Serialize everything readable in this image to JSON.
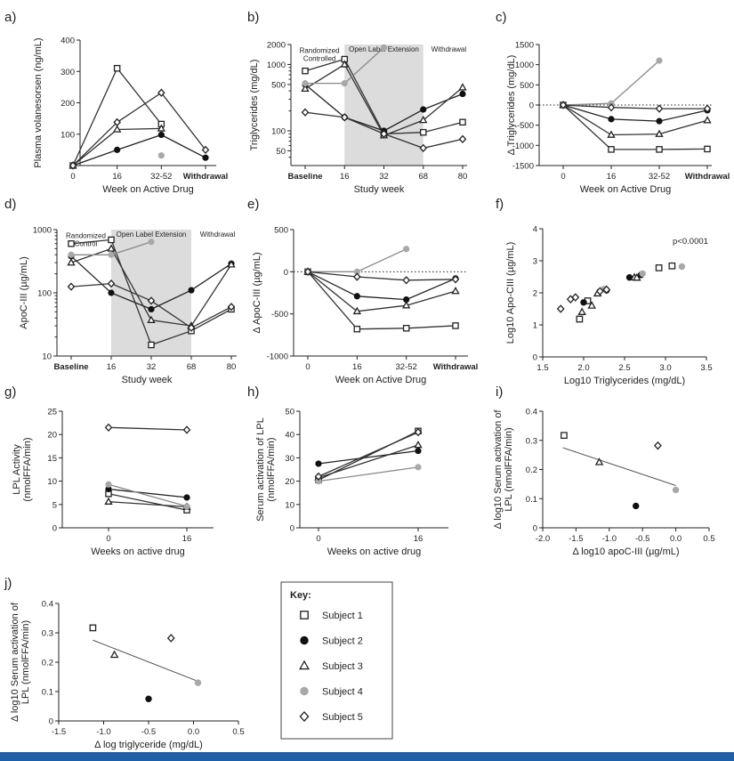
{
  "theme": {
    "bottom_bar": "#1f5fa8",
    "shade": "#dcdcdc"
  },
  "key": {
    "title": "Key:",
    "items": [
      {
        "label": "Subject 1",
        "marker": "square-open"
      },
      {
        "label": "Subject 2",
        "marker": "circle-filled"
      },
      {
        "label": "Subject 3",
        "marker": "triangle-open"
      },
      {
        "label": "Subject 4",
        "marker": "circle-gray"
      },
      {
        "label": "Subject 5",
        "marker": "diamond-open"
      }
    ]
  },
  "chart_data": [
    {
      "id": "a",
      "label": "a)",
      "type": "line",
      "xlabel": "Week on Active Drug",
      "ylabel": "Plasma volanesorsen (ng/mL)",
      "categories": [
        "0",
        "16",
        "32-52",
        "Withdrawal"
      ],
      "ylim": [
        0,
        400
      ],
      "yticks": [
        0,
        100,
        200,
        300,
        400
      ],
      "series": [
        {
          "name": "Subject 1",
          "values": [
            0,
            310,
            132,
            null
          ]
        },
        {
          "name": "Subject 2",
          "values": [
            0,
            50,
            98,
            25
          ]
        },
        {
          "name": "Subject 3",
          "values": [
            0,
            115,
            118,
            null
          ]
        },
        {
          "name": "Subject 4",
          "values": [
            0,
            null,
            32,
            null
          ]
        },
        {
          "name": "Subject 5",
          "values": [
            0,
            138,
            232,
            50
          ]
        }
      ]
    },
    {
      "id": "b",
      "label": "b)",
      "type": "line",
      "scale": "log",
      "xlabel": "Study week",
      "ylabel": "Triglycerides (mg/dL)",
      "categories": [
        "Baseline",
        "16",
        "32",
        "68",
        "80"
      ],
      "ylim": [
        30,
        2000
      ],
      "yticks": [
        50,
        100,
        500,
        1000,
        2000
      ],
      "shade_range": [
        "16",
        "68"
      ],
      "annotations": {
        "left": "Randomized\nControlled",
        "middle": "Open Label Extension",
        "right": "Withdrawal"
      },
      "series": [
        {
          "name": "Subject 1",
          "values": [
            800,
            1200,
            90,
            95,
            135
          ]
        },
        {
          "name": "Subject 2",
          "values": [
            500,
            160,
            100,
            210,
            360
          ]
        },
        {
          "name": "Subject 3",
          "values": [
            430,
            1000,
            85,
            145,
            450
          ]
        },
        {
          "name": "Subject 4",
          "values": [
            520,
            520,
            1800,
            null,
            null
          ]
        },
        {
          "name": "Subject 5",
          "values": [
            190,
            160,
            90,
            55,
            75
          ]
        }
      ]
    },
    {
      "id": "c",
      "label": "c)",
      "type": "line",
      "xlabel": "Week on Active Drug",
      "ylabel": "Δ Triglycerides (mg/dL)",
      "categories": [
        "0",
        "16",
        "32-52",
        "Withdrawal"
      ],
      "ylim": [
        -1500,
        1500
      ],
      "yticks": [
        -1500,
        -1000,
        -500,
        0,
        500,
        1000,
        1500
      ],
      "zero_line": true,
      "series": [
        {
          "name": "Subject 1",
          "values": [
            0,
            -1100,
            -1100,
            -1090
          ]
        },
        {
          "name": "Subject 2",
          "values": [
            0,
            -350,
            -400,
            -130
          ]
        },
        {
          "name": "Subject 3",
          "values": [
            0,
            -740,
            -720,
            -380
          ]
        },
        {
          "name": "Subject 4",
          "values": [
            0,
            40,
            1100,
            null
          ]
        },
        {
          "name": "Subject 5",
          "values": [
            0,
            -60,
            -90,
            -90
          ]
        }
      ]
    },
    {
      "id": "d",
      "label": "d)",
      "type": "line",
      "scale": "log",
      "xlabel": "Study week",
      "ylabel": "ApoC-III (µg/mL)",
      "categories": [
        "Baseline",
        "16",
        "32",
        "68",
        "80"
      ],
      "ylim": [
        10,
        1000
      ],
      "yticks": [
        10,
        100,
        1000
      ],
      "shade_range": [
        "16",
        "68"
      ],
      "annotations": {
        "left": "Randomized\nControl",
        "middle": "Open Label Extension",
        "right": "Withdrawal"
      },
      "series": [
        {
          "name": "Subject 1",
          "values": [
            600,
            690,
            15,
            25,
            55
          ]
        },
        {
          "name": "Subject 2",
          "values": [
            380,
            100,
            55,
            110,
            290
          ]
        },
        {
          "name": "Subject 3",
          "values": [
            300,
            500,
            37,
            30,
            280
          ]
        },
        {
          "name": "Subject 4",
          "values": [
            400,
            400,
            640,
            null,
            null
          ]
        },
        {
          "name": "Subject 5",
          "values": [
            125,
            140,
            75,
            28,
            60
          ]
        }
      ]
    },
    {
      "id": "e",
      "label": "e)",
      "type": "line",
      "xlabel": "Week on Active Drug",
      "ylabel": "Δ ApoC-III (µg/mL)",
      "categories": [
        "0",
        "16",
        "32-52",
        "Withdrawal"
      ],
      "ylim": [
        -1000,
        500
      ],
      "yticks": [
        -1000,
        -500,
        0,
        500
      ],
      "zero_line": true,
      "series": [
        {
          "name": "Subject 1",
          "values": [
            0,
            -680,
            -670,
            -640
          ]
        },
        {
          "name": "Subject 2",
          "values": [
            0,
            -290,
            -330,
            -80
          ]
        },
        {
          "name": "Subject 3",
          "values": [
            0,
            -470,
            -400,
            -230
          ]
        },
        {
          "name": "Subject 4",
          "values": [
            0,
            0,
            270,
            null
          ]
        },
        {
          "name": "Subject 5",
          "values": [
            0,
            -60,
            -100,
            -90
          ]
        }
      ]
    },
    {
      "id": "f",
      "label": "f)",
      "type": "scatter",
      "xlabel": "Log10 Triglycerides (mg/dL)",
      "ylabel": "Log10 Apo-CIII (µg/mL)",
      "xlim": [
        1.5,
        3.5
      ],
      "ylim": [
        0,
        4
      ],
      "xticks": [
        1.5,
        2.0,
        2.5,
        3.0,
        3.5
      ],
      "yticks": [
        0,
        1,
        2,
        3,
        4
      ],
      "annotation": "p<0.0001",
      "series": [
        {
          "name": "Subject 1",
          "points": [
            [
              1.95,
              1.18
            ],
            [
              2.05,
              1.75
            ],
            [
              2.92,
              2.78
            ],
            [
              3.08,
              2.84
            ]
          ]
        },
        {
          "name": "Subject 2",
          "points": [
            [
              2.0,
              1.7
            ],
            [
              2.28,
              2.08
            ],
            [
              2.56,
              2.48
            ],
            [
              2.7,
              2.56
            ]
          ]
        },
        {
          "name": "Subject 3",
          "points": [
            [
              1.98,
              1.4
            ],
            [
              2.1,
              1.6
            ],
            [
              2.17,
              1.98
            ],
            [
              2.62,
              2.48
            ],
            [
              2.65,
              2.47
            ]
          ]
        },
        {
          "name": "Subject 4",
          "points": [
            [
              2.25,
              2.12
            ],
            [
              2.72,
              2.6
            ],
            [
              3.2,
              2.82
            ]
          ]
        },
        {
          "name": "Subject 5",
          "points": [
            [
              1.72,
              1.5
            ],
            [
              1.84,
              1.8
            ],
            [
              1.9,
              1.86
            ],
            [
              2.2,
              2.05
            ],
            [
              2.28,
              2.1
            ]
          ]
        }
      ]
    },
    {
      "id": "g",
      "label": "g)",
      "type": "line",
      "xlabel": "Weeks on active drug",
      "ylabel": "LPL Activity\n(nmolFFA/min)",
      "categories": [
        "0",
        "16"
      ],
      "ylim": [
        0,
        25
      ],
      "yticks": [
        0,
        5,
        10,
        15,
        20,
        25
      ],
      "series": [
        {
          "name": "Subject 1",
          "values": [
            7.3,
            3.8
          ]
        },
        {
          "name": "Subject 2",
          "values": [
            8.3,
            6.5
          ]
        },
        {
          "name": "Subject 3",
          "values": [
            5.6,
            4.5
          ]
        },
        {
          "name": "Subject 4",
          "values": [
            9.3,
            4.6
          ]
        },
        {
          "name": "Subject 5",
          "values": [
            21.5,
            21.0
          ]
        }
      ]
    },
    {
      "id": "h",
      "label": "h)",
      "type": "line",
      "xlabel": "Weeks on active drug",
      "ylabel": "Serum activation of LPL\n(nmolFFA/min)",
      "categories": [
        "0",
        "16"
      ],
      "ylim": [
        0,
        50
      ],
      "yticks": [
        0,
        10,
        20,
        30,
        40,
        50
      ],
      "series": [
        {
          "name": "Subject 1",
          "values": [
            20.5,
            41.5
          ]
        },
        {
          "name": "Subject 2",
          "values": [
            27.5,
            33.0
          ]
        },
        {
          "name": "Subject 3",
          "values": [
            21.5,
            35.5
          ]
        },
        {
          "name": "Subject 4",
          "values": [
            20.0,
            26.0
          ]
        },
        {
          "name": "Subject 5",
          "values": [
            22.0,
            41.0
          ]
        }
      ]
    },
    {
      "id": "i",
      "label": "i)",
      "type": "scatter",
      "xlabel": "Δ log10 apoC-III  (µg/mL)",
      "ylabel": "Δ log10 Serum activation of\nLPL  (nmolFFA/min)",
      "xlim": [
        -2.0,
        0.5
      ],
      "ylim": [
        0,
        0.4
      ],
      "xticks": [
        -2.0,
        -1.5,
        -1.0,
        -0.5,
        0.0,
        0.5
      ],
      "yticks": [
        0.0,
        0.1,
        0.2,
        0.3,
        0.4
      ],
      "trendline": [
        [
          -1.7,
          0.275
        ],
        [
          0.0,
          0.145
        ]
      ],
      "series": [
        {
          "name": "Subject 1",
          "points": [
            [
              -1.68,
              0.317
            ]
          ]
        },
        {
          "name": "Subject 2",
          "points": [
            [
              -0.6,
              0.075
            ]
          ]
        },
        {
          "name": "Subject 3",
          "points": [
            [
              -1.15,
              0.225
            ]
          ]
        },
        {
          "name": "Subject 4",
          "points": [
            [
              0.0,
              0.13
            ]
          ]
        },
        {
          "name": "Subject 5",
          "points": [
            [
              -0.27,
              0.282
            ]
          ]
        }
      ]
    },
    {
      "id": "j",
      "label": "j)",
      "type": "scatter",
      "xlabel": "Δ log triglyceride (mg/dL)",
      "ylabel": "Δ log10 Serum activation of\nLPL  (nmolFFA/min)",
      "xlim": [
        -1.5,
        0.5
      ],
      "ylim": [
        0,
        0.4
      ],
      "xticks": [
        -1.5,
        -1.0,
        -0.5,
        0.0,
        0.5
      ],
      "yticks": [
        0.0,
        0.1,
        0.2,
        0.3,
        0.4
      ],
      "trendline": [
        [
          -1.12,
          0.275
        ],
        [
          0.05,
          0.135
        ]
      ],
      "series": [
        {
          "name": "Subject 1",
          "points": [
            [
              -1.12,
              0.317
            ]
          ]
        },
        {
          "name": "Subject 2",
          "points": [
            [
              -0.5,
              0.075
            ]
          ]
        },
        {
          "name": "Subject 3",
          "points": [
            [
              -0.88,
              0.225
            ]
          ]
        },
        {
          "name": "Subject 4",
          "points": [
            [
              0.05,
              0.13
            ]
          ]
        },
        {
          "name": "Subject 5",
          "points": [
            [
              -0.25,
              0.282
            ]
          ]
        }
      ]
    }
  ]
}
